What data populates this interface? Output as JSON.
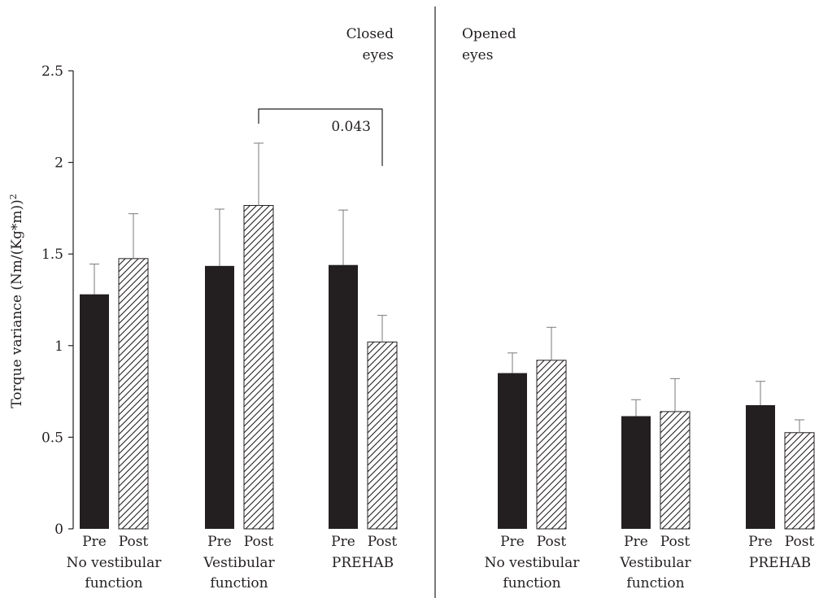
{
  "chart_data": {
    "type": "bar",
    "ylabel_main": "Torque variance (Nm/(Kg*m))",
    "ylabel_sup": "2",
    "ylim": [
      0,
      2.5
    ],
    "yticks": [
      "0",
      "0.5",
      "1",
      "1.5",
      "2",
      "2.5"
    ],
    "grid": false,
    "bar_labels": [
      "Pre",
      "Post"
    ],
    "panels": [
      {
        "label_lines": [
          "Closed",
          "eyes"
        ],
        "groups": [
          {
            "label_lines": [
              "No vestibular",
              "function"
            ],
            "pre": 1.28,
            "post": 1.475,
            "pre_err": 0.165,
            "post_err": 0.245
          },
          {
            "label_lines": [
              "Vestibular",
              "function"
            ],
            "pre": 1.435,
            "post": 1.765,
            "pre_err": 0.31,
            "post_err": 0.34
          },
          {
            "label_lines": [
              "PREHAB"
            ],
            "pre": 1.44,
            "post": 1.02,
            "pre_err": 0.3,
            "post_err": 0.145
          }
        ],
        "annotation": {
          "text": "0.043",
          "from_group": 1,
          "to_group": 2
        }
      },
      {
        "label_lines": [
          "Opened",
          "eyes"
        ],
        "groups": [
          {
            "label_lines": [
              "No vestibular",
              "function"
            ],
            "pre": 0.85,
            "post": 0.92,
            "pre_err": 0.11,
            "post_err": 0.18
          },
          {
            "label_lines": [
              "Vestibular",
              "function"
            ],
            "pre": 0.615,
            "post": 0.64,
            "pre_err": 0.09,
            "post_err": 0.18
          },
          {
            "label_lines": [
              "PREHAB"
            ],
            "pre": 0.675,
            "post": 0.525,
            "pre_err": 0.13,
            "post_err": 0.07
          }
        ]
      }
    ],
    "colors": {
      "pre": "#231f20",
      "post_hatch": "#231f20",
      "axis": "#231f20",
      "error": "#7a7a7a"
    }
  }
}
